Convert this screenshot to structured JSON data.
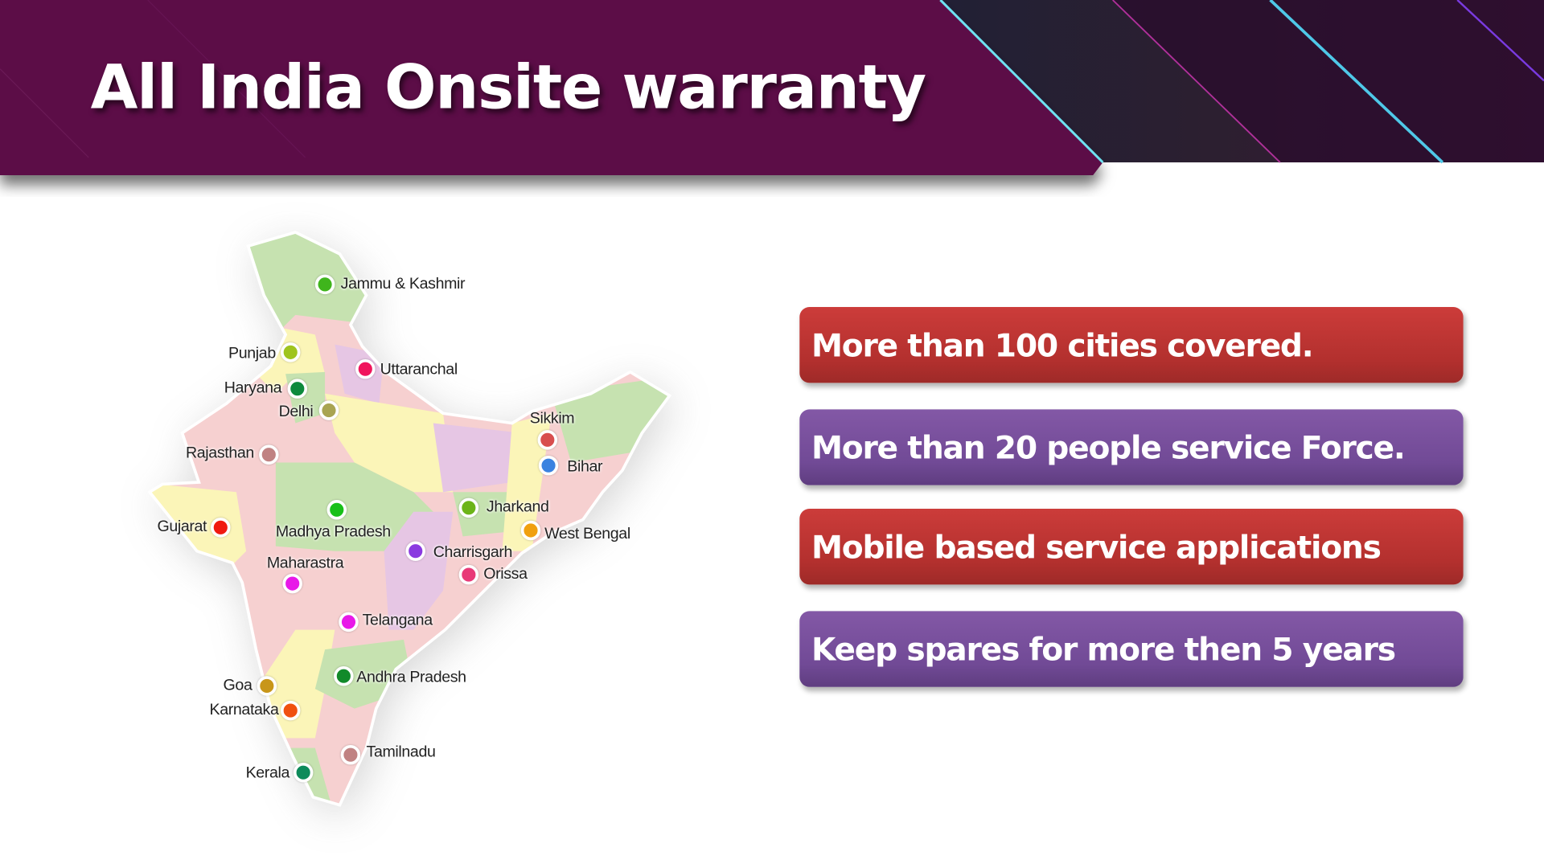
{
  "slide": {
    "title": "All India Onsite warranty",
    "colors": {
      "banner": "#5c0b47",
      "red_card": "#c43836",
      "purple_card": "#7752a0"
    }
  },
  "map": {
    "states": [
      {
        "name": "Jammu & Kashmir",
        "color": "#3fb51c"
      },
      {
        "name": "Punjab",
        "color": "#9fc41e"
      },
      {
        "name": "Uttaranchal",
        "color": "#f0145c"
      },
      {
        "name": "Haryana",
        "color": "#0d8a3c"
      },
      {
        "name": "Delhi",
        "color": "#a9a452"
      },
      {
        "name": "Sikkim",
        "color": "#d84e4e"
      },
      {
        "name": "Rajasthan",
        "color": "#c08282"
      },
      {
        "name": "Bihar",
        "color": "#3a82e0"
      },
      {
        "name": "Jharkand",
        "color": "#6cb418"
      },
      {
        "name": "Madhya Pradesh",
        "color": "#18c018"
      },
      {
        "name": "Gujarat",
        "color": "#f01a10"
      },
      {
        "name": "West Bengal",
        "color": "#f0a010"
      },
      {
        "name": "Charrisgarh",
        "color": "#8a3ae0"
      },
      {
        "name": "Maharastra",
        "color": "#e818e8"
      },
      {
        "name": "Orissa",
        "color": "#e83a78"
      },
      {
        "name": "Telangana",
        "color": "#e818e8"
      },
      {
        "name": "Andhra Pradesh",
        "color": "#128a2a"
      },
      {
        "name": "Goa",
        "color": "#c8961a"
      },
      {
        "name": "Karnataka",
        "color": "#f05010"
      },
      {
        "name": "Tamilnadu",
        "color": "#c08282"
      },
      {
        "name": "Kerala",
        "color": "#0d8a5a"
      }
    ]
  },
  "features": [
    {
      "text": "More than 100 cities covered.",
      "style": "red"
    },
    {
      "text": "More than 20 people service Force.",
      "style": "purple"
    },
    {
      "text": "Mobile based service applications",
      "style": "red"
    },
    {
      "text": "Keep spares for more then 5 years",
      "style": "purple"
    }
  ]
}
